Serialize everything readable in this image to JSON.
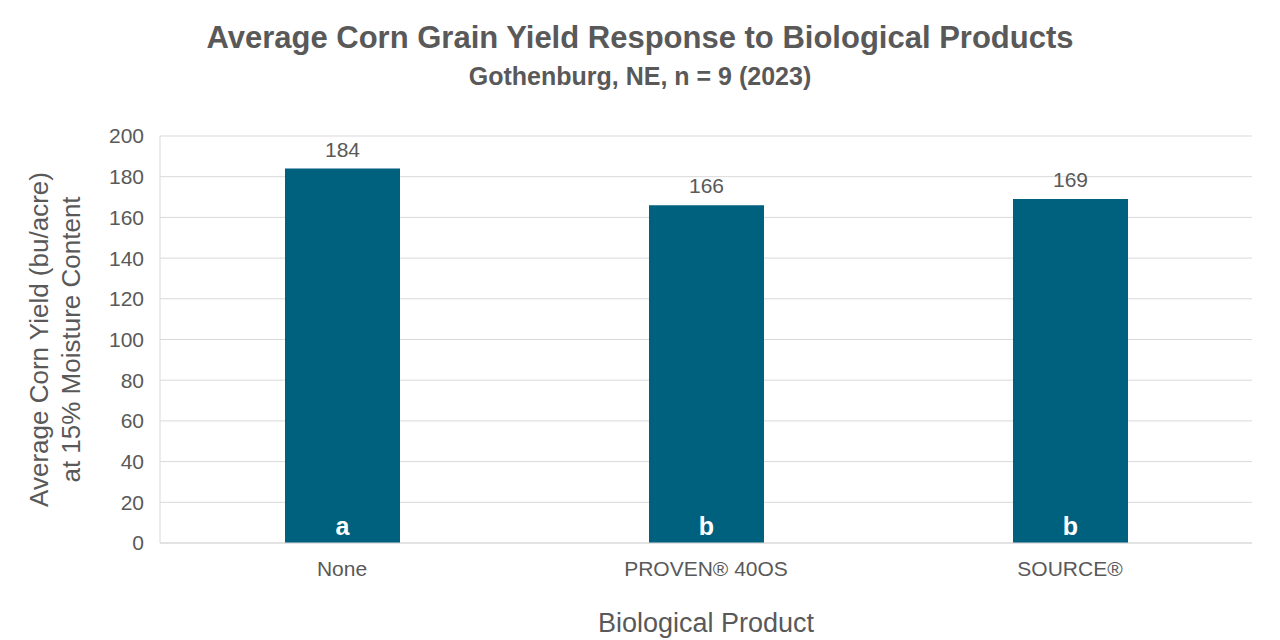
{
  "chart_data": {
    "type": "bar",
    "title": "Average Corn Grain Yield Response to Biological Products",
    "subtitle": "Gothenburg, NE, n = 9 (2023)",
    "xlabel": "Biological Product",
    "ylabel": "Average Corn Yield (bu/acre)\nat 15% Moisture Content",
    "categories": [
      "None",
      "PROVEN® 40OS",
      "SOURCE®"
    ],
    "values": [
      184,
      166,
      169
    ],
    "annotations": [
      "a",
      "b",
      "b"
    ],
    "color": "#00617f",
    "ylim": [
      0,
      200
    ],
    "yticks": [
      0,
      20,
      40,
      60,
      80,
      100,
      120,
      140,
      160,
      180,
      200
    ],
    "grid": true,
    "data_labels": true
  }
}
